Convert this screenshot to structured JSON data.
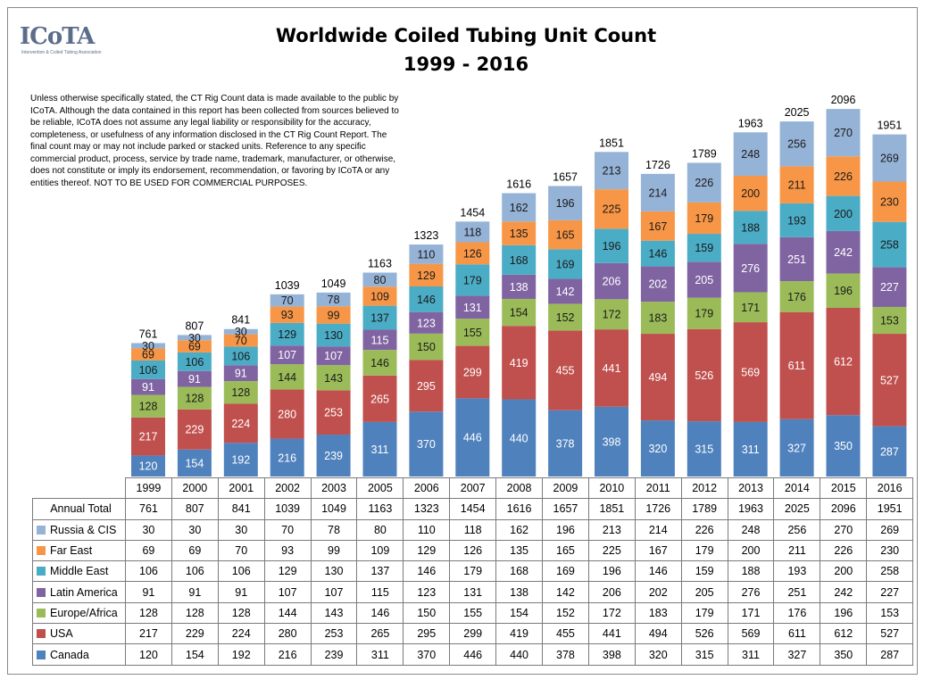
{
  "logo": {
    "text": "ICoTA",
    "subtitle": "Intervention & Coiled Tubing Association"
  },
  "title": "Worldwide Coiled Tubing Unit Count",
  "subtitle": "1999 - 2016",
  "disclaimer": "Unless otherwise specifically stated, the CT Rig Count data is made available to the public by ICoTA.  Although the data contained in this report has been collected from sources believed to be reliable, ICoTA does not assume any legal liability or responsibility for the accuracy, completeness, or usefulness of any information disclosed in the CT Rig Count Report.  The final count may or may not include parked or stacked units. Reference to any specific commercial product, process, service by trade name, trademark, manufacturer, or otherwise, does not constitute or imply its endorsement, recommendation, or favoring by ICoTA or any entities thereof.  NOT TO BE USED FOR COMMERCIAL PURPOSES.",
  "chart_data": {
    "type": "bar",
    "stacked": true,
    "categories": [
      "1999",
      "2000",
      "2001",
      "2002",
      "2003",
      "2005",
      "2006",
      "2007",
      "2008",
      "2009",
      "2010",
      "2011",
      "2012",
      "2013",
      "2014",
      "2015",
      "2016"
    ],
    "totals_label": "Annual Total",
    "totals": [
      761,
      807,
      841,
      1039,
      1049,
      1163,
      1323,
      1454,
      1616,
      1657,
      1851,
      1726,
      1789,
      1963,
      2025,
      2096,
      1951
    ],
    "series": [
      {
        "name": "Canada",
        "color": "#4f81bd",
        "values": [
          120,
          154,
          192,
          216,
          239,
          311,
          370,
          446,
          440,
          378,
          398,
          320,
          315,
          311,
          327,
          350,
          287
        ]
      },
      {
        "name": "USA",
        "color": "#c0504d",
        "values": [
          217,
          229,
          224,
          280,
          253,
          265,
          295,
          299,
          419,
          455,
          441,
          494,
          526,
          569,
          611,
          612,
          527
        ]
      },
      {
        "name": "Europe/Africa",
        "color": "#9bbb59",
        "values": [
          128,
          128,
          128,
          144,
          143,
          146,
          150,
          155,
          154,
          152,
          172,
          183,
          179,
          171,
          176,
          196,
          153
        ]
      },
      {
        "name": "Latin America",
        "color": "#8064a2",
        "values": [
          91,
          91,
          91,
          107,
          107,
          115,
          123,
          131,
          138,
          142,
          206,
          202,
          205,
          276,
          251,
          242,
          227
        ]
      },
      {
        "name": "Middle East",
        "color": "#4bacc6",
        "values": [
          106,
          106,
          106,
          129,
          130,
          137,
          146,
          179,
          168,
          169,
          196,
          146,
          159,
          188,
          193,
          200,
          258
        ]
      },
      {
        "name": "Far East",
        "color": "#f79646",
        "values": [
          69,
          69,
          70,
          93,
          99,
          109,
          129,
          126,
          135,
          165,
          225,
          167,
          179,
          200,
          211,
          226,
          230
        ]
      },
      {
        "name": "Russia & CIS",
        "color": "#95b3d7",
        "values": [
          30,
          30,
          30,
          70,
          78,
          80,
          110,
          118,
          162,
          196,
          213,
          214,
          226,
          248,
          256,
          270,
          269
        ]
      }
    ],
    "table_row_order": [
      "Russia & CIS",
      "Far East",
      "Middle East",
      "Latin America",
      "Europe/Africa",
      "USA",
      "Canada"
    ],
    "ylim": [
      0,
      2100
    ],
    "grid": false,
    "data_labels": true
  }
}
